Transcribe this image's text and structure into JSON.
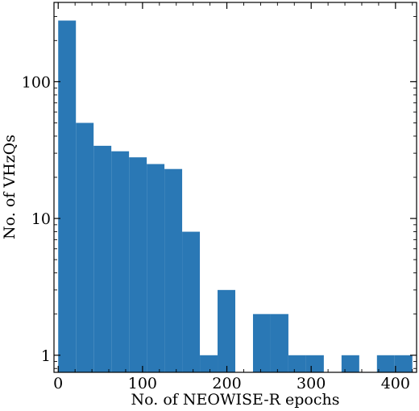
{
  "chart_data": {
    "type": "bar",
    "xlabel": "No. of NEOWISE-R epochs",
    "ylabel": "No. of VHzQs",
    "yscale": "log",
    "xlim": [
      -5,
      425
    ],
    "ylim": [
      0.75,
      380
    ],
    "x_ticks": [
      0,
      100,
      200,
      300,
      400
    ],
    "y_ticks": [
      1,
      10,
      100
    ],
    "bin_width": 21,
    "bins": [
      {
        "x_start": 0,
        "count": 280
      },
      {
        "x_start": 21,
        "count": 50
      },
      {
        "x_start": 42,
        "count": 34
      },
      {
        "x_start": 63,
        "count": 31
      },
      {
        "x_start": 84,
        "count": 28
      },
      {
        "x_start": 105,
        "count": 25
      },
      {
        "x_start": 126,
        "count": 23
      },
      {
        "x_start": 147,
        "count": 8
      },
      {
        "x_start": 168,
        "count": 1
      },
      {
        "x_start": 189,
        "count": 3
      },
      {
        "x_start": 210,
        "count": 0
      },
      {
        "x_start": 231,
        "count": 2
      },
      {
        "x_start": 252,
        "count": 2
      },
      {
        "x_start": 273,
        "count": 1
      },
      {
        "x_start": 294,
        "count": 1
      },
      {
        "x_start": 315,
        "count": 0
      },
      {
        "x_start": 336,
        "count": 1
      },
      {
        "x_start": 357,
        "count": 0
      },
      {
        "x_start": 378,
        "count": 1
      },
      {
        "x_start": 399,
        "count": 1
      }
    ],
    "bar_color": "#2a78b5",
    "grid": false,
    "legend": "none"
  }
}
